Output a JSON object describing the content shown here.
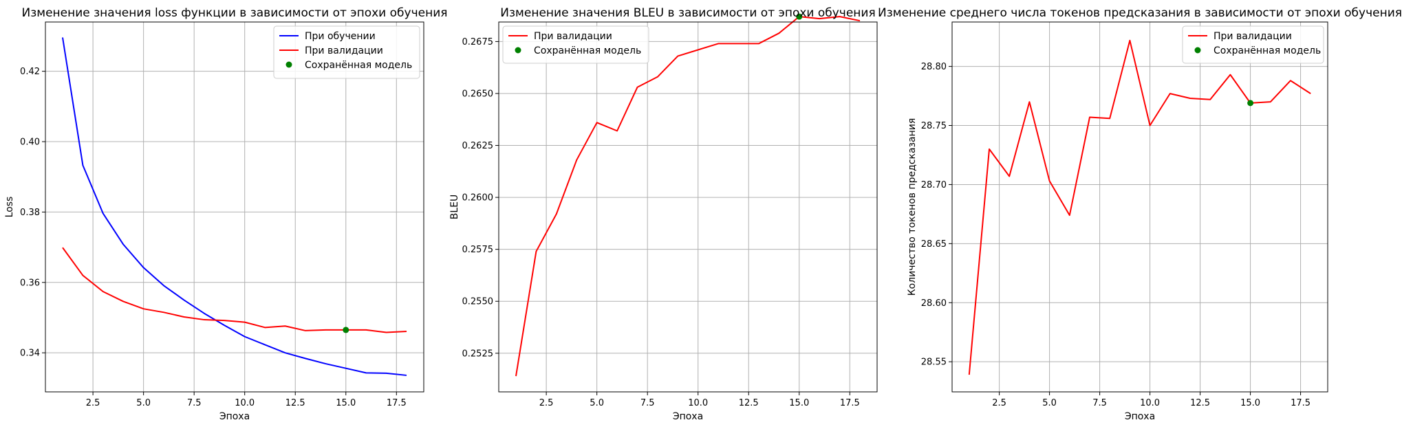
{
  "chart_data": [
    {
      "type": "line",
      "title": "Изменение значения loss функции в зависимости от эпохи обучения",
      "xlabel": "Эпоха",
      "ylabel": "Loss",
      "xlim": [
        0.15,
        18.85
      ],
      "ylim": [
        0.3289,
        0.434
      ],
      "xticks": [
        2.5,
        5.0,
        7.5,
        10.0,
        12.5,
        15.0,
        17.5
      ],
      "xtick_labels": [
        "2.5",
        "5.0",
        "7.5",
        "10.0",
        "12.5",
        "15.0",
        "17.5"
      ],
      "yticks": [
        0.34,
        0.36,
        0.38,
        0.4,
        0.42
      ],
      "ytick_labels": [
        "0.34",
        "0.36",
        "0.38",
        "0.40",
        "0.42"
      ],
      "grid": true,
      "legend_position": "top-right",
      "x": [
        1,
        2,
        3,
        4,
        5,
        6,
        7,
        8,
        9,
        10,
        11,
        12,
        13,
        14,
        15,
        16,
        17,
        18
      ],
      "series": [
        {
          "name": "При обучении",
          "style": "line",
          "color": "#0000ff",
          "values": [
            0.4296,
            0.3933,
            0.3796,
            0.3708,
            0.3642,
            0.3591,
            0.355,
            0.3512,
            0.3478,
            0.3446,
            0.3423,
            0.34,
            0.3384,
            0.3369,
            0.3356,
            0.3343,
            0.3342,
            0.3336
          ]
        },
        {
          "name": "При валидации",
          "style": "line",
          "color": "#ff0000",
          "values": [
            0.3699,
            0.362,
            0.3574,
            0.3546,
            0.3525,
            0.3515,
            0.3502,
            0.3494,
            0.3492,
            0.3487,
            0.3472,
            0.3476,
            0.3463,
            0.3465,
            0.3465,
            0.3465,
            0.3458,
            0.3461
          ]
        },
        {
          "name": "Сохранённая модель",
          "style": "point",
          "color": "#008000",
          "points": [
            [
              15,
              0.3465
            ]
          ]
        }
      ]
    },
    {
      "type": "line",
      "title": "Изменение значения BLEU в зависимости от эпохи обучения",
      "xlabel": "Эпоха",
      "ylabel": "BLEU",
      "xlim": [
        0.15,
        18.85
      ],
      "ylim": [
        0.25064,
        0.26844
      ],
      "xticks": [
        2.5,
        5.0,
        7.5,
        10.0,
        12.5,
        15.0,
        17.5
      ],
      "xtick_labels": [
        "2.5",
        "5.0",
        "7.5",
        "10.0",
        "12.5",
        "15.0",
        "17.5"
      ],
      "yticks": [
        0.2525,
        0.255,
        0.2575,
        0.26,
        0.2625,
        0.265,
        0.2675
      ],
      "ytick_labels": [
        "0.2525",
        "0.2550",
        "0.2575",
        "0.2600",
        "0.2625",
        "0.2650",
        "0.2675"
      ],
      "grid": true,
      "legend_position": "top-left",
      "x": [
        1,
        2,
        3,
        4,
        5,
        6,
        7,
        8,
        9,
        10,
        11,
        12,
        13,
        14,
        15,
        16,
        17,
        18
      ],
      "series": [
        {
          "name": "При валидации",
          "style": "line",
          "color": "#ff0000",
          "values": [
            0.2514,
            0.2574,
            0.2592,
            0.2618,
            0.2636,
            0.2632,
            0.2653,
            0.2658,
            0.2668,
            0.2671,
            0.2674,
            0.2674,
            0.2674,
            0.2679,
            0.2687,
            0.2686,
            0.2687,
            0.2685
          ]
        },
        {
          "name": "Сохранённая модель",
          "style": "point",
          "color": "#008000",
          "points": [
            [
              15,
              0.2687
            ]
          ]
        }
      ]
    },
    {
      "type": "line",
      "title": "Изменение среднего числа токенов предсказания в зависимости от эпохи обучения",
      "xlabel": "Эпоха",
      "ylabel": "Количество токенов предсказания",
      "xlim": [
        0.15,
        18.85
      ],
      "ylim": [
        28.5245,
        28.8376
      ],
      "xticks": [
        2.5,
        5.0,
        7.5,
        10.0,
        12.5,
        15.0,
        17.5
      ],
      "xtick_labels": [
        "2.5",
        "5.0",
        "7.5",
        "10.0",
        "12.5",
        "15.0",
        "17.5"
      ],
      "yticks": [
        28.55,
        28.6,
        28.65,
        28.7,
        28.75,
        28.8
      ],
      "ytick_labels": [
        "28.55",
        "28.60",
        "28.65",
        "28.70",
        "28.75",
        "28.80"
      ],
      "grid": true,
      "legend_position": "top-right",
      "x": [
        1,
        2,
        3,
        4,
        5,
        6,
        7,
        8,
        9,
        10,
        11,
        12,
        13,
        14,
        15,
        16,
        17,
        18
      ],
      "series": [
        {
          "name": "При валидации",
          "style": "line",
          "color": "#ff0000",
          "values": [
            28.539,
            28.73,
            28.707,
            28.77,
            28.703,
            28.674,
            28.757,
            28.756,
            28.822,
            28.75,
            28.777,
            28.773,
            28.772,
            28.793,
            28.769,
            28.77,
            28.788,
            28.777
          ]
        },
        {
          "name": "Сохранённая модель",
          "style": "point",
          "color": "#008000",
          "points": [
            [
              15,
              28.769
            ]
          ]
        }
      ]
    }
  ]
}
